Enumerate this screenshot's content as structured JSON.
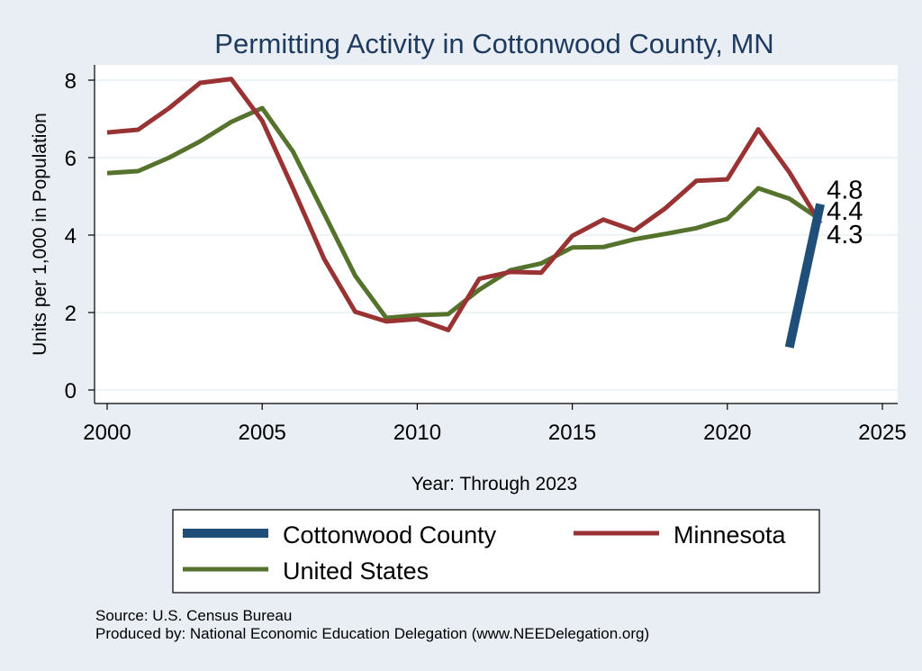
{
  "chart_data": {
    "type": "line",
    "title": "Permitting Activity in Cottonwood County, MN",
    "xlabel": "Year: Through 2023",
    "ylabel": "Units per 1,000 in Population",
    "xlim": [
      2000,
      2025
    ],
    "ylim": [
      0,
      8
    ],
    "xticks": [
      2000,
      2005,
      2010,
      2015,
      2020,
      2025
    ],
    "yticks": [
      0,
      2,
      4,
      6,
      8
    ],
    "grid": true,
    "legend_position": "bottom",
    "series": [
      {
        "name": "Cottonwood County",
        "color": "#1f4e79",
        "x": [
          2022,
          2023
        ],
        "values": [
          1.1,
          4.8
        ],
        "end_label": "4.8"
      },
      {
        "name": "Minnesota",
        "color": "#993333",
        "x": [
          2000,
          2001,
          2002,
          2003,
          2004,
          2005,
          2006,
          2007,
          2008,
          2009,
          2010,
          2011,
          2012,
          2013,
          2014,
          2015,
          2016,
          2017,
          2018,
          2019,
          2020,
          2021,
          2022,
          2023
        ],
        "values": [
          6.65,
          6.72,
          7.28,
          7.93,
          8.03,
          6.95,
          5.2,
          3.38,
          2.02,
          1.77,
          1.83,
          1.55,
          2.87,
          3.05,
          3.03,
          3.98,
          4.4,
          4.12,
          4.69,
          5.4,
          5.44,
          6.73,
          5.62,
          4.3
        ],
        "end_label": "4.3"
      },
      {
        "name": "United States",
        "color": "#55732d",
        "x": [
          2000,
          2001,
          2002,
          2003,
          2004,
          2005,
          2006,
          2007,
          2008,
          2009,
          2010,
          2011,
          2012,
          2013,
          2014,
          2015,
          2016,
          2017,
          2018,
          2019,
          2020,
          2021,
          2022,
          2023
        ],
        "values": [
          5.6,
          5.65,
          6.0,
          6.42,
          6.92,
          7.28,
          6.15,
          4.55,
          2.95,
          1.86,
          1.93,
          1.96,
          2.59,
          3.09,
          3.27,
          3.68,
          3.69,
          3.89,
          4.03,
          4.18,
          4.42,
          5.21,
          4.94,
          4.4
        ],
        "end_label": "4.4"
      }
    ],
    "source_note": "Source: U.S. Census Bureau",
    "producer_note": "Produced by: National Economic Education Delegation (www.NEEDelegation.org)"
  }
}
